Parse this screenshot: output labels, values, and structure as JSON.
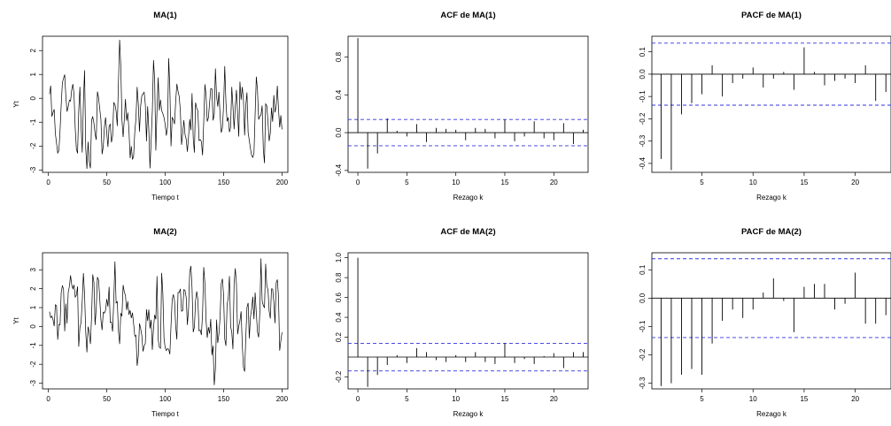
{
  "panels_color": {
    "ci_line": "#3333dd",
    "bars": "#000000",
    "frame": "#000000"
  },
  "chart_data": [
    {
      "type": "line",
      "title": "MA(1)",
      "xlabel": "Tiempo t",
      "ylabel": "Yt",
      "xlim": [
        -5,
        205
      ],
      "ylim": [
        -3.1,
        2.6
      ],
      "xticks": [
        0,
        50,
        100,
        150,
        200
      ],
      "yticks": [
        -3,
        -2,
        -1,
        0,
        1,
        2
      ],
      "n": 200,
      "amp": 1.25,
      "min": -2.95,
      "max": 2.45,
      "seed": 11,
      "theta": [
        0.8
      ]
    },
    {
      "type": "bar",
      "title": "ACF de MA(1)",
      "xlabel": "Rezago k",
      "ylabel": "",
      "xlim": [
        -1,
        23.5
      ],
      "ylim": [
        -0.42,
        1.02
      ],
      "xticks": [
        0,
        5,
        10,
        15,
        20
      ],
      "yticks": [
        -0.4,
        0.0,
        0.4,
        0.8
      ],
      "ci": 0.139,
      "lags": [
        0,
        1,
        2,
        3,
        4,
        5,
        6,
        7,
        8,
        9,
        10,
        11,
        12,
        13,
        14,
        15,
        16,
        17,
        18,
        19,
        20,
        21,
        22,
        23
      ],
      "values": [
        1.0,
        -0.38,
        -0.22,
        0.15,
        0.02,
        -0.04,
        0.09,
        -0.1,
        0.05,
        0.04,
        0.03,
        -0.08,
        0.05,
        0.04,
        -0.06,
        0.14,
        -0.09,
        -0.04,
        0.12,
        -0.06,
        -0.08,
        0.1,
        -0.12,
        0.03
      ]
    },
    {
      "type": "bar",
      "title": "PACF de MA(1)",
      "xlabel": "Rezago k",
      "ylabel": "",
      "xlim": [
        0.1,
        23.5
      ],
      "ylim": [
        -0.44,
        0.17
      ],
      "xticks": [
        5,
        10,
        15,
        20
      ],
      "yticks": [
        -0.4,
        -0.3,
        -0.2,
        -0.1,
        0.0,
        0.1
      ],
      "ci": 0.139,
      "lags": [
        1,
        2,
        3,
        4,
        5,
        6,
        7,
        8,
        9,
        10,
        11,
        12,
        13,
        14,
        15,
        16,
        17,
        18,
        19,
        20,
        21,
        22,
        23
      ],
      "values": [
        -0.38,
        -0.43,
        -0.18,
        -0.13,
        -0.09,
        0.04,
        -0.1,
        -0.04,
        -0.02,
        0.03,
        -0.06,
        -0.02,
        0.01,
        -0.07,
        0.12,
        0.01,
        -0.05,
        -0.03,
        -0.02,
        -0.04,
        0.04,
        -0.12,
        -0.08
      ]
    },
    {
      "type": "line",
      "title": "MA(2)",
      "xlabel": "Tiempo t",
      "ylabel": "Yt",
      "xlim": [
        -5,
        205
      ],
      "ylim": [
        -3.3,
        3.9
      ],
      "xticks": [
        0,
        50,
        100,
        150,
        200
      ],
      "yticks": [
        -3,
        -2,
        -1,
        0,
        1,
        2,
        3
      ],
      "n": 200,
      "amp": 1.35,
      "min": -3.1,
      "max": 3.6,
      "seed": 29,
      "theta": [
        0.7,
        0.4
      ]
    },
    {
      "type": "bar",
      "title": "ACF de MA(2)",
      "xlabel": "Rezago k",
      "ylabel": "",
      "xlim": [
        -1,
        23.5
      ],
      "ylim": [
        -0.32,
        1.05
      ],
      "xticks": [
        0,
        5,
        10,
        15,
        20
      ],
      "yticks": [
        -0.2,
        0.2,
        0.4,
        0.6,
        0.8,
        1.0
      ],
      "ci": 0.139,
      "lags": [
        0,
        1,
        2,
        3,
        4,
        5,
        6,
        7,
        8,
        9,
        10,
        11,
        12,
        13,
        14,
        15,
        16,
        17,
        18,
        19,
        20,
        21,
        22,
        23
      ],
      "values": [
        1.0,
        -0.3,
        -0.18,
        -0.08,
        0.02,
        -0.06,
        0.09,
        0.05,
        -0.03,
        -0.05,
        0.02,
        -0.05,
        0.05,
        -0.05,
        -0.07,
        0.14,
        -0.06,
        -0.02,
        -0.07,
        0.01,
        0.04,
        -0.11,
        0.05,
        0.05
      ]
    },
    {
      "type": "bar",
      "title": "PACF de MA(2)",
      "xlabel": "Rezago k",
      "ylabel": "",
      "xlim": [
        0.1,
        23.5
      ],
      "ylim": [
        -0.32,
        0.16
      ],
      "xticks": [
        5,
        10,
        15,
        20
      ],
      "yticks": [
        -0.3,
        -0.2,
        -0.1,
        0.0,
        0.1
      ],
      "ci": 0.139,
      "lags": [
        1,
        2,
        3,
        4,
        5,
        6,
        7,
        8,
        9,
        10,
        11,
        12,
        13,
        14,
        15,
        16,
        17,
        18,
        19,
        20,
        21,
        22,
        23
      ],
      "values": [
        -0.31,
        -0.3,
        -0.27,
        -0.25,
        -0.27,
        -0.16,
        -0.08,
        -0.04,
        -0.07,
        -0.04,
        0.02,
        0.07,
        -0.01,
        -0.12,
        0.04,
        0.05,
        0.05,
        -0.04,
        -0.02,
        0.09,
        -0.09,
        -0.09,
        -0.06
      ]
    }
  ]
}
